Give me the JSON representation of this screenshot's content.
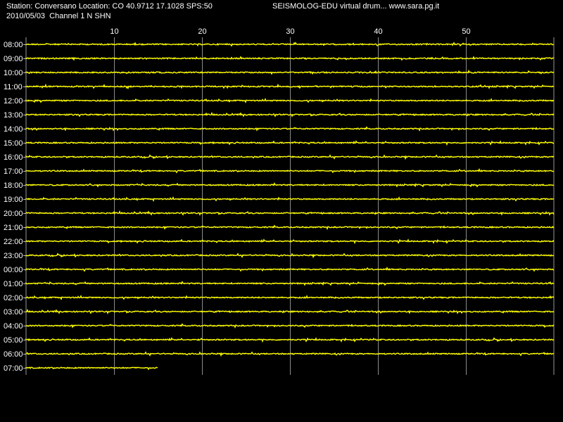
{
  "header": {
    "station_line": "Station: Conversano Location: CO 40.9712 17.1028 SPS:50",
    "date_line": "2010/05/03  Channel 1 N SHN",
    "site_line": "SEISMOLOG-EDU virtual drum... www.sara.pg.it"
  },
  "colors": {
    "trace": "#ffff00",
    "grid": "#ffffff",
    "background": "#000000",
    "text": "#ffffff"
  },
  "chart_data": {
    "type": "line",
    "title": "",
    "xlabel": "",
    "ylabel": "",
    "xlim": [
      0,
      60
    ],
    "x_ticks": [
      10,
      20,
      30,
      40,
      50
    ],
    "grid": true,
    "rows": [
      {
        "label": "08:00",
        "end_minute": 60
      },
      {
        "label": "09:00",
        "end_minute": 60
      },
      {
        "label": "10:00",
        "end_minute": 60
      },
      {
        "label": "11:00",
        "end_minute": 60
      },
      {
        "label": "12:00",
        "end_minute": 60
      },
      {
        "label": "13:00",
        "end_minute": 60
      },
      {
        "label": "14:00",
        "end_minute": 60
      },
      {
        "label": "15:00",
        "end_minute": 60
      },
      {
        "label": "16:00",
        "end_minute": 60
      },
      {
        "label": "17:00",
        "end_minute": 60
      },
      {
        "label": "18:00",
        "end_minute": 60
      },
      {
        "label": "19:00",
        "end_minute": 60
      },
      {
        "label": "20:00",
        "end_minute": 60
      },
      {
        "label": "21:00",
        "end_minute": 60
      },
      {
        "label": "22:00",
        "end_minute": 60
      },
      {
        "label": "23:00",
        "end_minute": 60
      },
      {
        "label": "00:00",
        "end_minute": 60
      },
      {
        "label": "01:00",
        "end_minute": 60
      },
      {
        "label": "02:00",
        "end_minute": 60
      },
      {
        "label": "03:00",
        "end_minute": 60
      },
      {
        "label": "04:00",
        "end_minute": 60
      },
      {
        "label": "05:00",
        "end_minute": 60
      },
      {
        "label": "06:00",
        "end_minute": 60
      },
      {
        "label": "07:00",
        "end_minute": 15
      }
    ]
  }
}
